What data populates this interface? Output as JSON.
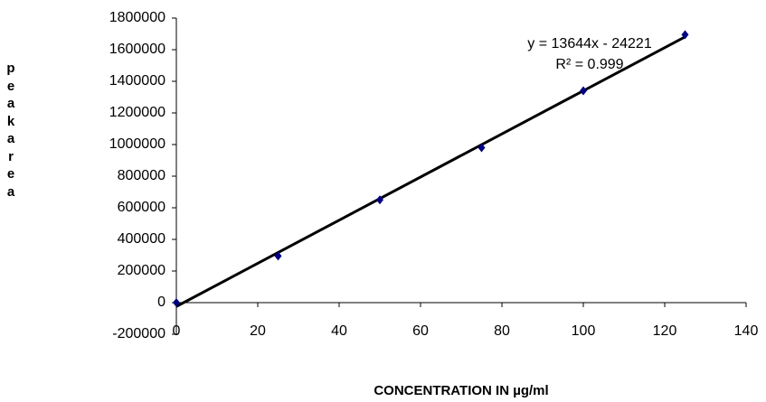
{
  "chart_data": {
    "type": "scatter",
    "y_label": "peakarea",
    "x_label": "CONCENTRATION IN µg/ml",
    "x": [
      0,
      25,
      50,
      75,
      100,
      125
    ],
    "series": [
      {
        "name": "peak area",
        "color": "#000080",
        "values": [
          0,
          295000,
          650000,
          980000,
          1340000,
          1695000
        ]
      }
    ],
    "xlim": [
      0,
      140
    ],
    "xticks": [
      0,
      20,
      40,
      60,
      80,
      100,
      120,
      140
    ],
    "ylim": [
      -200000,
      1800000
    ],
    "yticks": [
      -200000,
      0,
      200000,
      400000,
      600000,
      800000,
      1000000,
      1200000,
      1400000,
      1600000,
      1800000
    ],
    "grid": false,
    "trendline": {
      "equation": "y = 13644x - 24221",
      "r_squared": "R² = 0.999",
      "slope": 13644,
      "intercept": -24221,
      "color": "#000000"
    }
  }
}
